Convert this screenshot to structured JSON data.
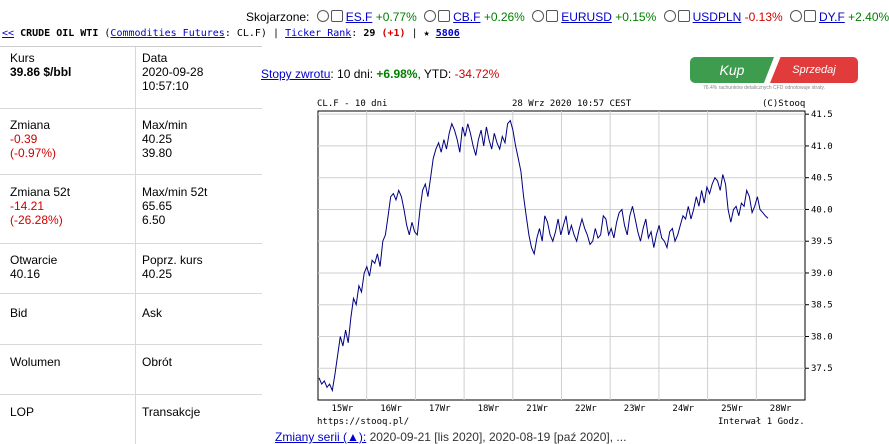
{
  "compare": {
    "label": "Skojarzone:",
    "items": [
      {
        "symbol": "ES.F",
        "change": "+0.77%"
      },
      {
        "symbol": "CB.F",
        "change": "+0.26%"
      },
      {
        "symbol": "EURUSD",
        "change": "+0.15%"
      },
      {
        "symbol": "USDPLN",
        "change": "-0.13%"
      },
      {
        "symbol": "DY.F",
        "change": "+2.40%"
      }
    ]
  },
  "breadcrumb": {
    "back": "<<",
    "name": "CRUDE OIL WTI",
    "category": "Commodities Futures",
    "ticker": ": CL.F)",
    "sep": "|",
    "rank_label": "Ticker Rank",
    "rank_value": "29",
    "rank_change": "(+1)",
    "star_label": "★",
    "stars": "5806"
  },
  "quote": {
    "kurs_label": "Kurs",
    "kurs_value": "39.86 $/bbl",
    "data_label": "Data",
    "data_date": "2020-09-28",
    "data_time": "10:57:10",
    "zmiana_label": "Zmiana",
    "zmiana_abs": "-0.39",
    "zmiana_pct": "(-0.97%)",
    "maxmin_label": "Max/min",
    "max": "40.25",
    "min": "39.80",
    "zmiana52_label": "Zmiana 52t",
    "zmiana52_abs": "-14.21",
    "zmiana52_pct": "(-26.28%)",
    "maxmin52_label": "Max/min 52t",
    "max52": "65.65",
    "min52": "6.50",
    "otwarcie_label": "Otwarcie",
    "otwarcie": "40.16",
    "poprz_label": "Poprz. kurs",
    "poprz": "40.25",
    "bid_label": "Bid",
    "ask_label": "Ask",
    "wolumen_label": "Wolumen",
    "obrot_label": "Obrót",
    "lop_label": "LOP",
    "transakcje_label": "Transakcje"
  },
  "returns": {
    "label": "Stopy zwrotu",
    "d10_label": ": 10 dni:",
    "d10": "+6.98%",
    "ytd_label": ", YTD:",
    "ytd": "-34.72%"
  },
  "trade": {
    "buy": "Kup",
    "sell": "Sprzedaj",
    "disclaimer": "76.4% rachunków detalicznych CFD odnotowuje straty."
  },
  "chart_data": {
    "type": "line",
    "title_left": "CL.F - 10 dni",
    "title_mid": "28 Wrz 2020 10:57 CEST",
    "title_right": "(C)Stooq",
    "footer_left": "https://stooq.pl/",
    "footer_right": "Interwał 1 Godz.",
    "ylim": [
      37.0,
      41.55
    ],
    "yticks": [
      "41.5",
      "41.0",
      "40.5",
      "40.0",
      "39.5",
      "39.0",
      "38.5",
      "38.0",
      "37.5"
    ],
    "xticks": [
      "15Wr",
      "16Wr",
      "17Wr",
      "18Wr",
      "21Wr",
      "22Wr",
      "23Wr",
      "24Wr",
      "25Wr",
      "28Wr"
    ],
    "series": [
      {
        "color": "#000080",
        "values": [
          37.35,
          37.25,
          37.3,
          37.2,
          37.25,
          37.15,
          37.4,
          37.7,
          38.0,
          37.85,
          38.1,
          37.9,
          38.3,
          38.6,
          38.5,
          38.8,
          38.7,
          39.0,
          39.1,
          38.95,
          39.2,
          39.15,
          39.3,
          39.1,
          39.5,
          39.6,
          39.9,
          40.2,
          40.25,
          40.15,
          40.3,
          40.2,
          40.0,
          39.75,
          39.6,
          39.8,
          39.65,
          39.6,
          40.0,
          40.3,
          40.4,
          40.2,
          40.5,
          40.8,
          40.95,
          41.05,
          40.9,
          41.1,
          40.95,
          41.2,
          41.35,
          41.25,
          41.1,
          40.9,
          41.3,
          41.15,
          41.35,
          41.2,
          41.0,
          40.85,
          41.1,
          41.25,
          41.0,
          41.3,
          41.1,
          40.95,
          41.2,
          41.05,
          40.95,
          41.15,
          41.05,
          41.35,
          41.4,
          41.25,
          41.0,
          40.8,
          40.6,
          40.2,
          39.9,
          39.6,
          39.4,
          39.3,
          39.55,
          39.7,
          39.5,
          39.9,
          39.8,
          39.6,
          39.5,
          39.65,
          39.85,
          39.6,
          39.75,
          39.9,
          39.6,
          39.75,
          39.6,
          39.5,
          39.7,
          39.85,
          39.7,
          39.6,
          39.45,
          39.5,
          39.7,
          39.55,
          39.6,
          39.9,
          39.85,
          39.6,
          39.7,
          39.55,
          39.8,
          39.95,
          40.0,
          39.75,
          39.6,
          39.9,
          40.05,
          39.85,
          39.65,
          39.5,
          39.7,
          39.85,
          39.55,
          39.65,
          39.4,
          39.6,
          39.75,
          39.55,
          39.5,
          39.4,
          39.65,
          39.7,
          39.5,
          39.6,
          39.75,
          39.9,
          39.85,
          40.05,
          39.85,
          40.0,
          40.2,
          40.05,
          40.3,
          40.1,
          40.35,
          40.25,
          40.4,
          40.5,
          40.45,
          40.3,
          40.55,
          40.4,
          40.0,
          39.8,
          40.0,
          40.05,
          39.9,
          40.1,
          40.05,
          40.3,
          40.2,
          39.95,
          40.05,
          40.2,
          40.0,
          39.95,
          39.9,
          39.86
        ]
      }
    ]
  },
  "series_changes": {
    "label": "Zmiany serii (▲):",
    "text": "2020-09-21 [lis 2020], 2020-08-19 [paź 2020], ..."
  }
}
